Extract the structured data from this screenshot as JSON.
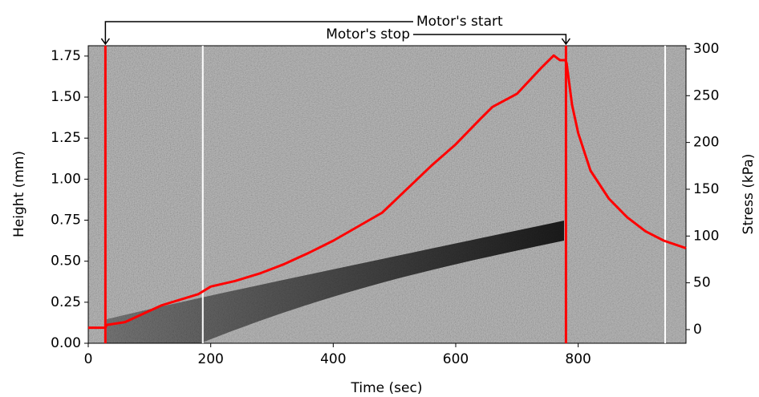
{
  "chart_data": {
    "type": "line",
    "xlabel": "Time (sec)",
    "ylabel": "Height (mm)",
    "y2label": "Stress (kPa)",
    "xlim": [
      0,
      976
    ],
    "ylim": [
      0,
      1.813
    ],
    "y2lim": [
      -14.6,
      303.4
    ],
    "xticks": [
      0,
      200,
      400,
      600,
      800
    ],
    "yticks": [
      {
        "value": 0,
        "label": "0.00"
      },
      {
        "value": 0.25,
        "label": "0.25"
      },
      {
        "value": 0.5,
        "label": "0.50"
      },
      {
        "value": 0.75,
        "label": "0.75"
      },
      {
        "value": 1,
        "label": "1.00"
      },
      {
        "value": 1.25,
        "label": "1.25"
      },
      {
        "value": 1.5,
        "label": "1.50"
      },
      {
        "value": 1.75,
        "label": "1.75"
      }
    ],
    "y2ticks": [
      0,
      50,
      100,
      150,
      200,
      250,
      300
    ],
    "vlines": [
      {
        "x": 28,
        "color": "#ff0000"
      },
      {
        "x": 780,
        "color": "#ff0000"
      },
      {
        "x": 187,
        "color": "#ffffff"
      },
      {
        "x": 942,
        "color": "#ffffff"
      }
    ],
    "annotations": [
      {
        "text": "Motor's start"
      },
      {
        "text": "Motor's stop"
      }
    ],
    "series": [
      {
        "name": "Stress",
        "color": "#ff0000",
        "axis": "y2",
        "x": [
          0,
          28,
          30,
          40,
          60,
          80,
          100,
          120,
          150,
          180,
          200,
          240,
          280,
          320,
          360,
          400,
          440,
          480,
          520,
          560,
          600,
          640,
          660,
          700,
          740,
          760,
          770,
          779,
          781,
          790,
          800,
          820,
          850,
          880,
          910,
          940,
          976
        ],
        "values": [
          2,
          2,
          5,
          6,
          8,
          14,
          20,
          26,
          32,
          38,
          46,
          52,
          60,
          70,
          82,
          95,
          110,
          125,
          150,
          175,
          198,
          225,
          238,
          252,
          280,
          293,
          288,
          288,
          285,
          240,
          210,
          170,
          140,
          120,
          105,
          95,
          87
        ]
      }
    ]
  }
}
